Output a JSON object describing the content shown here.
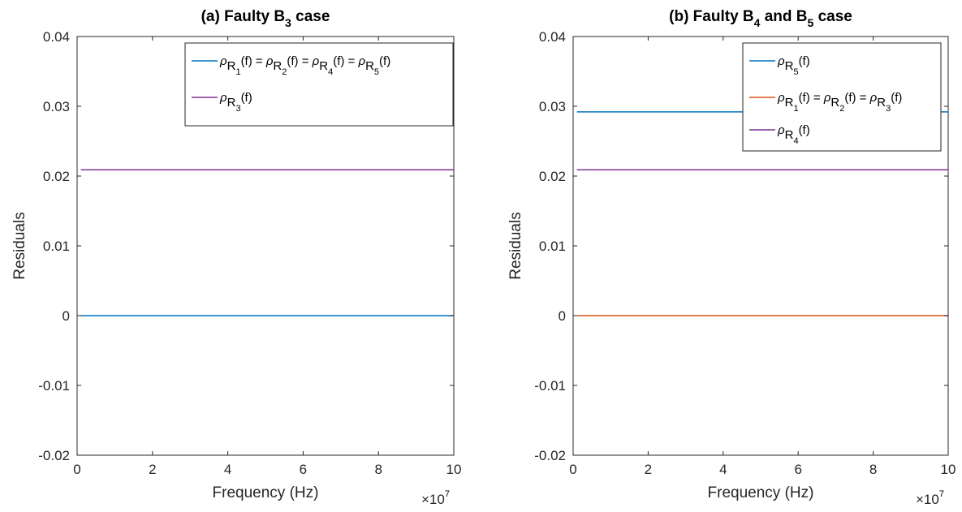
{
  "chart_data": [
    {
      "type": "line",
      "title": {
        "main": "(a) Faulty B",
        "sub": "3",
        "tail": " case"
      },
      "xlabel": "Frequency (Hz)",
      "ylabel": "Residuals",
      "x_exponent": {
        "base": "×10",
        "power": "7"
      },
      "xlim": [
        0,
        100000000
      ],
      "ylim": [
        -0.02,
        0.04
      ],
      "xticks": [
        0,
        20000000,
        40000000,
        60000000,
        80000000,
        100000000
      ],
      "xtick_labels": [
        "0",
        "2",
        "4",
        "6",
        "8",
        "10"
      ],
      "yticks": [
        -0.02,
        -0.01,
        0,
        0.01,
        0.02,
        0.03,
        0.04
      ],
      "ytick_labels": [
        "-0.02",
        "-0.01",
        "0",
        "0.01",
        "0.02",
        "0.03",
        "0.04"
      ],
      "grid": false,
      "legend_position": "top-right",
      "series": [
        {
          "name": "ρR1(f) = ρR2(f) = ρR4(f) = ρR5(f)",
          "legend_parts": [
            [
              "ρ",
              "R",
              "1",
              "(f) = "
            ],
            [
              "ρ",
              "R",
              "2",
              "(f) = "
            ],
            [
              "ρ",
              "R",
              "4",
              "(f) =  "
            ],
            [
              "ρ",
              "R",
              "5",
              "(f)"
            ]
          ],
          "color": "#0072BD",
          "x": [
            1000000,
            100000000
          ],
          "y": [
            0,
            0
          ]
        },
        {
          "name": "ρR3(f)",
          "legend_parts": [
            [
              "ρ",
              "R",
              "3",
              "(f)"
            ]
          ],
          "color": "#7E2F8E",
          "x": [
            1000000,
            100000000
          ],
          "y": [
            0.0209,
            0.0209
          ]
        }
      ]
    },
    {
      "type": "line",
      "title": {
        "main": "(b) Faulty B",
        "sub": "4",
        "mid": " and B",
        "sub2": "5",
        "tail": " case"
      },
      "xlabel": "Frequency (Hz)",
      "ylabel": "Residuals",
      "x_exponent": {
        "base": "×10",
        "power": "7"
      },
      "xlim": [
        0,
        100000000
      ],
      "ylim": [
        -0.02,
        0.04
      ],
      "xticks": [
        0,
        20000000,
        40000000,
        60000000,
        80000000,
        100000000
      ],
      "xtick_labels": [
        "0",
        "2",
        "4",
        "6",
        "8",
        "10"
      ],
      "yticks": [
        -0.02,
        -0.01,
        0,
        0.01,
        0.02,
        0.03,
        0.04
      ],
      "ytick_labels": [
        "-0.02",
        "-0.01",
        "0",
        "0.01",
        "0.02",
        "0.03",
        "0.04"
      ],
      "grid": false,
      "legend_position": "top-right",
      "series": [
        {
          "name": "ρR5(f)",
          "legend_parts": [
            [
              "ρ",
              "R",
              "5",
              "(f)"
            ]
          ],
          "color": "#0072BD",
          "x": [
            1000000,
            100000000
          ],
          "y": [
            0.0292,
            0.0292
          ]
        },
        {
          "name": "ρR1(f) = ρR2(f) = ρR3(f)",
          "legend_parts": [
            [
              "ρ",
              "R",
              "1",
              "(f) = "
            ],
            [
              "ρ",
              "R",
              "2",
              "(f) =  "
            ],
            [
              "ρ",
              "R",
              "3",
              "(f)"
            ]
          ],
          "color": "#D95319",
          "x": [
            1000000,
            100000000
          ],
          "y": [
            0,
            0
          ]
        },
        {
          "name": "ρR4(f)",
          "legend_parts": [
            [
              "ρ",
              "R",
              "4",
              "(f)"
            ]
          ],
          "color": "#7E2F8E",
          "x": [
            1000000,
            100000000
          ],
          "y": [
            0.0209,
            0.0209
          ]
        }
      ]
    }
  ]
}
